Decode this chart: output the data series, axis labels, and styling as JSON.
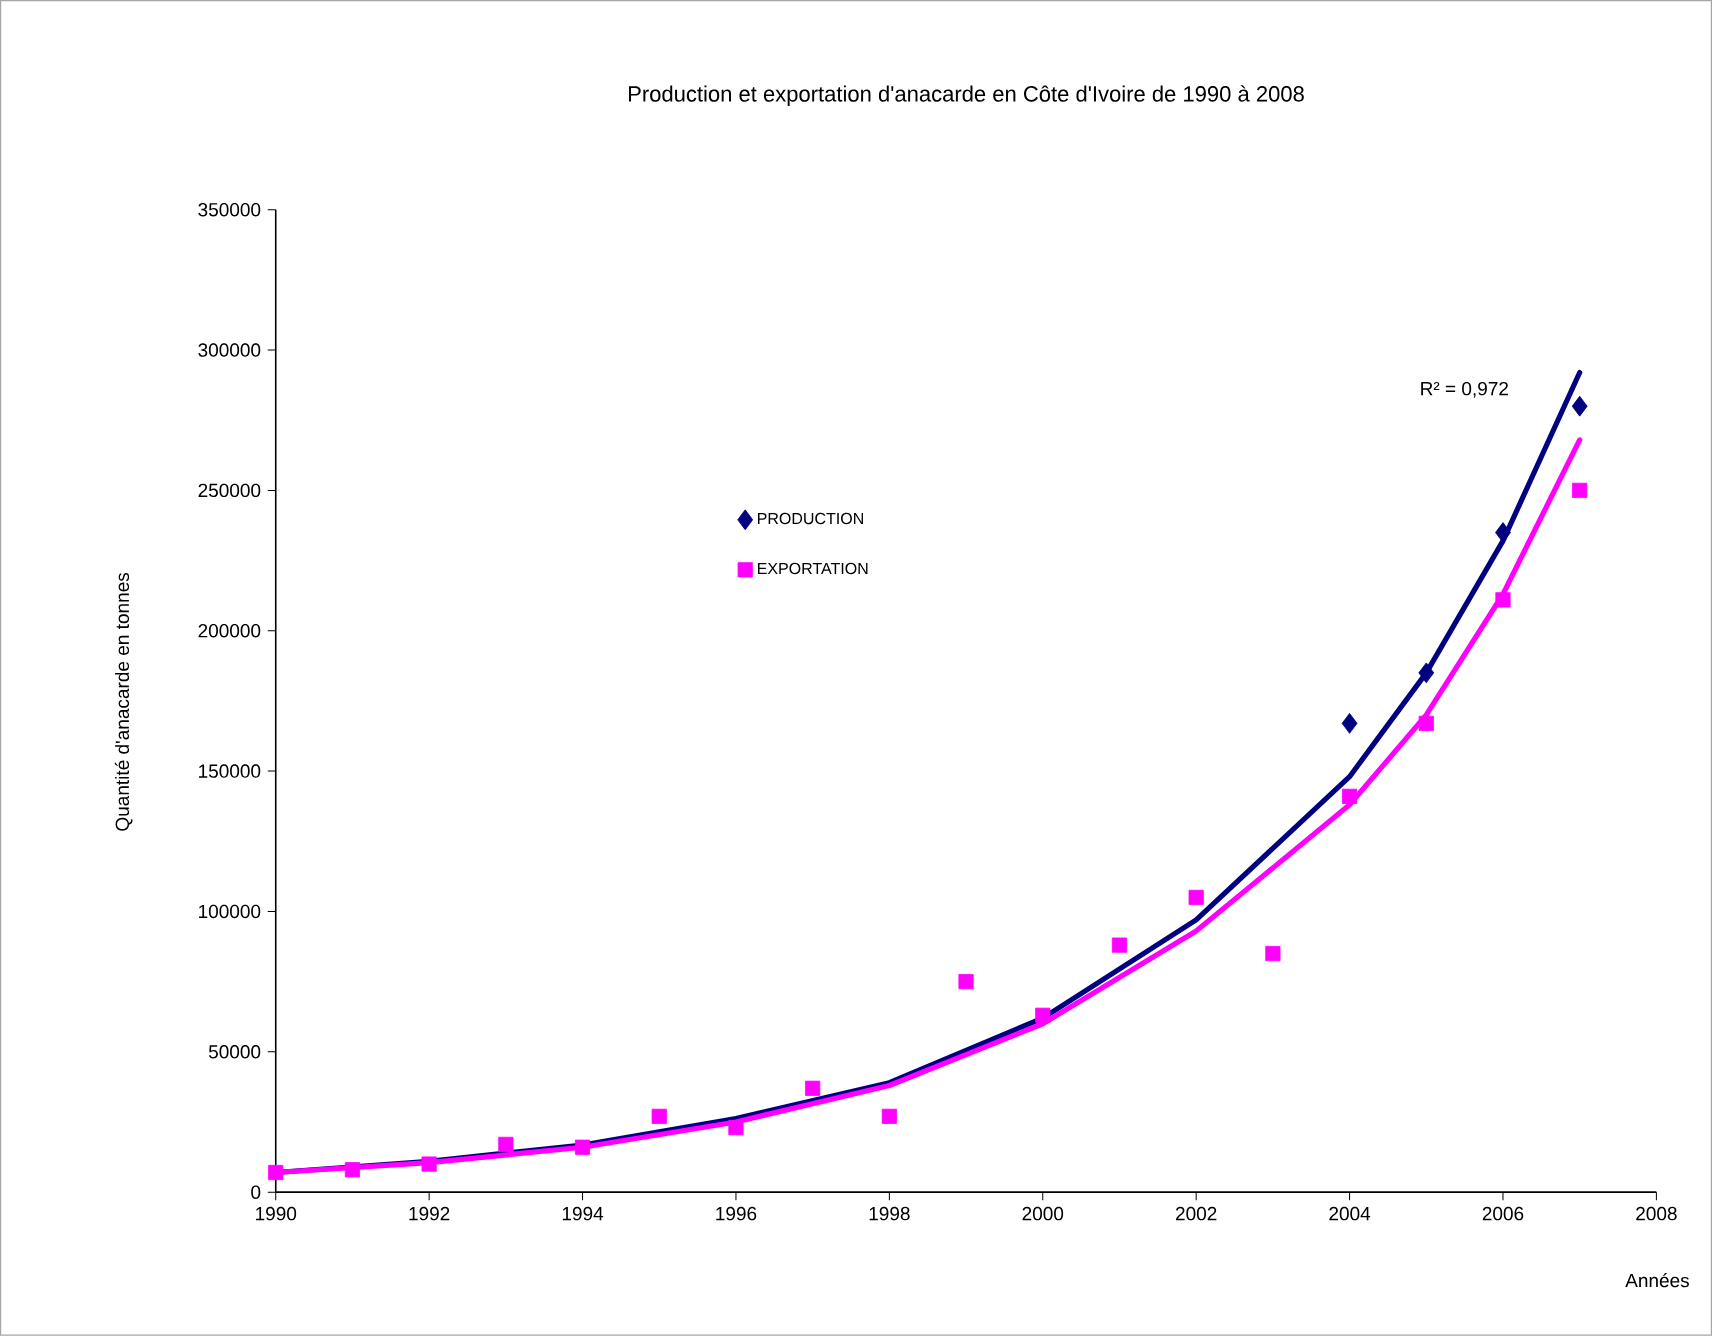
{
  "chart_data": {
    "type": "scatter",
    "title": "Production et exportation d'anacarde en Côte d'Ivoire de 1990 à 2008",
    "xlabel": "Années",
    "ylabel": "Quantité d'anacarde en tonnes",
    "x": [
      1990,
      1991,
      1992,
      1993,
      1994,
      1995,
      1996,
      1997,
      1998,
      1999,
      2000,
      2001,
      2002,
      2003,
      2004,
      2005,
      2006,
      2007
    ],
    "series": [
      {
        "name": "PRODUCTION",
        "color": "#000080",
        "marker": "diamond",
        "values": [
          null,
          null,
          null,
          null,
          null,
          null,
          null,
          null,
          null,
          null,
          null,
          null,
          null,
          null,
          167000,
          185000,
          235000,
          280000
        ]
      },
      {
        "name": "EXPORTATION",
        "color": "#ff00ff",
        "marker": "square",
        "values": [
          7000,
          8000,
          10000,
          17000,
          16000,
          27000,
          23000,
          37000,
          27000,
          75000,
          63000,
          88000,
          105000,
          85000,
          141000,
          167000,
          211000,
          250000
        ]
      },
      {
        "type": "line",
        "color": "#000080",
        "marker": "none",
        "x": [
          1990,
          1992,
          1994,
          1996,
          1998,
          2000,
          2002,
          2004,
          2005,
          2006,
          2007
        ],
        "values": [
          7000,
          11000,
          16800,
          26200,
          39000,
          62000,
          97000,
          148000,
          185000,
          232000,
          292000
        ]
      },
      {
        "type": "line",
        "color": "#ff00ff",
        "marker": "none",
        "x": [
          1990,
          1992,
          1994,
          1996,
          1998,
          2000,
          2002,
          2004,
          2005,
          2006,
          2007
        ],
        "values": [
          7000,
          10500,
          16000,
          25000,
          38000,
          60000,
          93000,
          138000,
          170000,
          213000,
          268000
        ]
      }
    ],
    "xlim": [
      1990,
      2008
    ],
    "xticks": [
      1990,
      1992,
      1994,
      1996,
      1998,
      2000,
      2002,
      2004,
      2006,
      2008
    ],
    "ylim": [
      0,
      350000
    ],
    "yticks": [
      0,
      50000,
      100000,
      150000,
      200000,
      250000,
      300000,
      350000
    ],
    "annotations": [
      "R² = 0,972"
    ],
    "grid": false,
    "legend": "top left"
  }
}
